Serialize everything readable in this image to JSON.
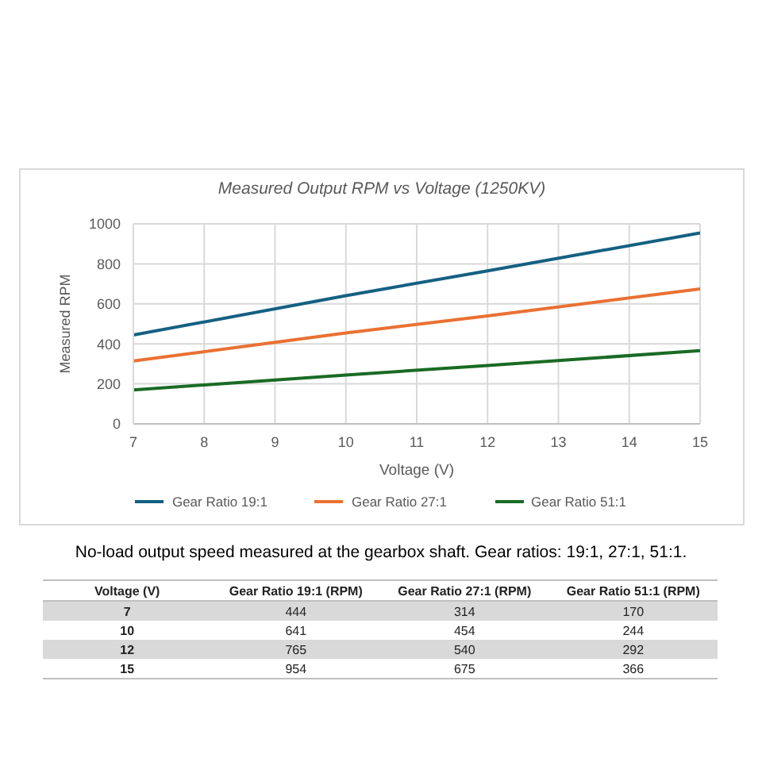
{
  "chart_data": [
    {
      "type": "line",
      "title": "Measured Output RPM vs Voltage (1250KV)",
      "xlabel": "Voltage (V)",
      "ylabel": "Measured RPM",
      "x": [
        7,
        10,
        12,
        15
      ],
      "series": [
        {
          "name": "Gear Ratio 19:1",
          "color": "#156082",
          "values": [
            444,
            641,
            765,
            954
          ]
        },
        {
          "name": "Gear Ratio 27:1",
          "color": "#e97132",
          "values": [
            314,
            454,
            540,
            675
          ]
        },
        {
          "name": "Gear Ratio 51:1",
          "color": "#196b24",
          "values": [
            170,
            244,
            292,
            366
          ]
        }
      ],
      "xlim": [
        7,
        15
      ],
      "xticks": [
        7,
        8,
        9,
        10,
        11,
        12,
        13,
        14,
        15
      ],
      "ylim": [
        0,
        1000
      ],
      "yticks": [
        0,
        200,
        400,
        600,
        800,
        1000
      ],
      "grid": true,
      "legend": "bottom",
      "marker": "none",
      "line_style": "solid",
      "annotations": [
        "No-load output speed measured at the gearbox shaft. Gear ratios: 19:1, 27:1, 51:1."
      ]
    },
    {
      "type": "heatmap",
      "ylabel": "Voltage (V)",
      "categories": [
        "Gear Ratio 19:1 (RPM)",
        "Gear Ratio 27:1 (RPM)",
        "Gear Ratio 51:1 (RPM)"
      ],
      "y_categories": [
        "7",
        "10",
        "12",
        "15"
      ],
      "cells": [
        [
          444,
          314,
          170
        ],
        [
          641,
          454,
          244
        ],
        [
          765,
          540,
          292
        ],
        [
          954,
          675,
          366
        ]
      ],
      "data_labels": true
    }
  ]
}
